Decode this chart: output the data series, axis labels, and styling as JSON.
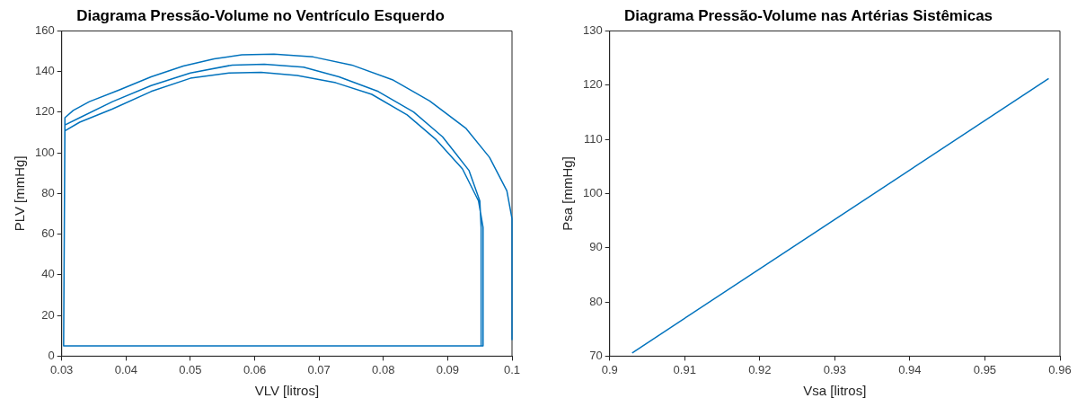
{
  "chart_data": [
    {
      "type": "line",
      "title": "Diagrama Pressão-Volume no Ventrículo Esquerdo",
      "xlabel": "VLV [litros]",
      "ylabel": "PLV [mmHg]",
      "xlim": [
        0.03,
        0.1
      ],
      "xticks": [
        0.03,
        0.04,
        0.05,
        0.06,
        0.07,
        0.08,
        0.09,
        0.1
      ],
      "ylim": [
        0,
        160
      ],
      "yticks": [
        0,
        20,
        40,
        60,
        80,
        100,
        120,
        140,
        160
      ],
      "marker": "none",
      "series": [
        {
          "color": "#0072bd",
          "x": [
            0.1,
            0.1,
            0.0992,
            0.0965,
            0.0928,
            0.0872,
            0.0814,
            0.0751,
            0.0691,
            0.063,
            0.058,
            0.0537,
            0.0489,
            0.0439,
            0.0389,
            0.0343,
            0.0318,
            0.0305,
            0.0303,
            0.0952,
            0.0952,
            0.095,
            0.0933,
            0.0892,
            0.0847,
            0.0792,
            0.0731,
            0.0676,
            0.0615,
            0.0565,
            0.05,
            0.0439,
            0.0379,
            0.0328,
            0.0305,
            0.0303,
            0.0955,
            0.0955,
            0.0948,
            0.0923,
            0.0882,
            0.0837,
            0.0782,
            0.0726,
            0.0666,
            0.061,
            0.056,
            0.05,
            0.0439,
            0.0379,
            0.0328,
            0.0305,
            0.0303,
            0.0955
          ],
          "values": [
            7.9,
            67.6,
            81.3,
            97.8,
            112.2,
            125.5,
            136,
            143.2,
            147.2,
            148.6,
            148.2,
            146.3,
            142.7,
            137.4,
            130.9,
            125.2,
            120.9,
            117.3,
            5,
            5,
            63.3,
            76.3,
            91.4,
            107.9,
            120.1,
            130.2,
            137.4,
            142.2,
            143.6,
            143.2,
            139.3,
            133.1,
            125.2,
            117.3,
            113.7,
            5,
            5,
            63.3,
            76.3,
            92.1,
            106.5,
            118.7,
            128.8,
            134.5,
            138.1,
            139.6,
            139.3,
            136.7,
            130.2,
            121.6,
            115.1,
            110.8,
            5,
            5
          ]
        }
      ]
    },
    {
      "type": "line",
      "title": "Diagrama Pressão-Volume nas Artérias Sistêmicas",
      "xlabel": "Vsa [litros]",
      "ylabel": "Psa [mmHg]",
      "xlim": [
        0.9,
        0.96
      ],
      "xticks": [
        0.9,
        0.91,
        0.92,
        0.93,
        0.94,
        0.95,
        0.96
      ],
      "ylim": [
        70,
        130
      ],
      "yticks": [
        70,
        80,
        90,
        100,
        110,
        120,
        130
      ],
      "marker": "none",
      "series": [
        {
          "color": "#0072bd",
          "x": [
            0.903,
            0.9585
          ],
          "values": [
            70.6,
            121.2
          ]
        }
      ]
    }
  ]
}
